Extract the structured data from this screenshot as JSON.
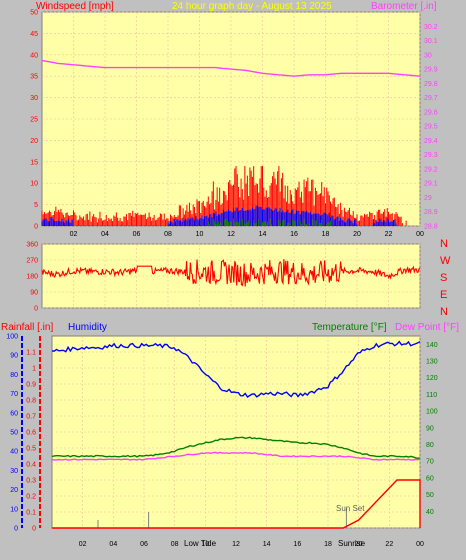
{
  "header": {
    "left_label": "Windspeed [mph]",
    "center_label": "24 hour graph day - August 13 2025",
    "right_label": "Barometer [.in]"
  },
  "lower_header": {
    "rain_label": "Rainfall [.in]",
    "humidity_label": "Humidity",
    "temp_label": "Temperature [°F]",
    "dew_label": "Dew Point [°F]"
  },
  "annotations": {
    "sun_set": "Sun Set",
    "sun_rise": "Sunrise",
    "low_tide": "Low Tide"
  },
  "colors": {
    "background": "#c0c0c0",
    "panel": "#ffffa8",
    "grid": "#f0c0a0",
    "wind": "#ff0000",
    "gust": "#0000ff",
    "avg": "#008000",
    "barometer": "#ff40ff",
    "humidity": "#0000ff",
    "temperature": "#008000",
    "dewpoint": "#ff40ff",
    "rain": "#ff0000",
    "title": "#ffff00"
  },
  "chart_data": [
    {
      "type": "area",
      "panel": "wind-barometer",
      "x_ticks": [
        "02",
        "04",
        "06",
        "08",
        "10",
        "12",
        "14",
        "16",
        "18",
        "20",
        "22",
        "00"
      ],
      "left_axis": {
        "label": "Windspeed [mph]",
        "ylim": [
          0,
          50
        ],
        "ticks": [
          0,
          5,
          10,
          15,
          20,
          25,
          30,
          35,
          40,
          45,
          50
        ]
      },
      "right_axis": {
        "label": "Barometer [.in]",
        "ylim": [
          28.8,
          30.3
        ],
        "ticks": [
          "28.8",
          "28.9",
          "29",
          "29.1",
          "29.2",
          "29.3",
          "29.4",
          "29.5",
          "29.6",
          "29.7",
          "29.8",
          "29.9",
          "30",
          "30.1",
          "30.2"
        ]
      },
      "series": [
        {
          "name": "Windspeed",
          "hours": [
            0,
            1,
            2,
            3,
            4,
            5,
            6,
            7,
            8,
            9,
            10,
            11,
            12,
            13,
            14,
            15,
            16,
            17,
            18,
            19,
            20,
            21,
            22,
            23,
            24
          ],
          "values": [
            2,
            2,
            1,
            1,
            1,
            1,
            1,
            1,
            1,
            2,
            3,
            5,
            7,
            8,
            8,
            7,
            6,
            6,
            5,
            2,
            1,
            1,
            2,
            0,
            0
          ]
        },
        {
          "name": "Barometer",
          "hours": [
            0,
            1,
            2,
            3,
            4,
            5,
            6,
            7,
            8,
            9,
            10,
            11,
            12,
            13,
            14,
            15,
            16,
            17,
            18,
            19,
            20,
            21,
            22,
            23,
            24
          ],
          "values": [
            29.96,
            29.94,
            29.93,
            29.92,
            29.91,
            29.91,
            29.91,
            29.91,
            29.91,
            29.91,
            29.91,
            29.91,
            29.9,
            29.89,
            29.87,
            29.86,
            29.85,
            29.86,
            29.86,
            29.87,
            29.87,
            29.87,
            29.87,
            29.86,
            29.85
          ]
        }
      ]
    },
    {
      "type": "line",
      "panel": "wind-direction",
      "ylim": [
        0,
        360
      ],
      "y_ticks": [
        "0",
        "90",
        "180",
        "270",
        "360"
      ],
      "compass": [
        "N",
        "W",
        "S",
        "E",
        "N"
      ],
      "series": [
        {
          "name": "Wind Direction",
          "hours": [
            0,
            1,
            2,
            3,
            4,
            5,
            6,
            7,
            8,
            9,
            10,
            11,
            12,
            13,
            14,
            15,
            16,
            17,
            18,
            19,
            20,
            21,
            22,
            23,
            24
          ],
          "values": [
            200,
            190,
            210,
            205,
            205,
            200,
            210,
            205,
            210,
            205,
            205,
            200,
            200,
            190,
            200,
            210,
            200,
            190,
            200,
            205,
            210,
            205,
            180,
            215,
            215
          ]
        }
      ]
    },
    {
      "type": "line",
      "panel": "temperature-humidity-rain",
      "x_ticks": [
        "02",
        "04",
        "06",
        "08",
        "10",
        "12",
        "14",
        "16",
        "18",
        "20",
        "22",
        "00"
      ],
      "rain_axis": {
        "label": "Rainfall [.in]",
        "ylim": [
          0,
          1.2
        ],
        "ticks": [
          "0",
          "0.1",
          "0.2",
          "0.3",
          "0.4",
          "0.5",
          "0.6",
          "0.7",
          "0.8",
          "0.9",
          "1",
          "1.1"
        ]
      },
      "humidity_axis": {
        "label": "Humidity",
        "ylim": [
          0,
          100
        ],
        "ticks": [
          "0",
          "10",
          "20",
          "30",
          "40",
          "50",
          "60",
          "70",
          "80",
          "90",
          "100"
        ]
      },
      "temp_axis": {
        "label": "Temperature [°F]",
        "ylim": [
          30,
          145
        ],
        "ticks": [
          "40",
          "50",
          "60",
          "70",
          "80",
          "90",
          "100",
          "110",
          "120",
          "130",
          "140"
        ]
      },
      "series": [
        {
          "name": "Humidity",
          "hours": [
            0,
            1,
            2,
            3,
            4,
            5,
            6,
            7,
            8,
            9,
            10,
            11,
            12,
            13,
            14,
            15,
            16,
            17,
            18,
            19,
            20,
            21,
            22,
            23,
            24
          ],
          "values": [
            92,
            93,
            94,
            94,
            95,
            95,
            95,
            95,
            94,
            88,
            80,
            73,
            70,
            69,
            70,
            70,
            69,
            71,
            74,
            82,
            91,
            95,
            96,
            96,
            96
          ]
        },
        {
          "name": "Temperature",
          "hours": [
            0,
            1,
            2,
            3,
            4,
            5,
            6,
            7,
            8,
            9,
            10,
            11,
            12,
            13,
            14,
            15,
            16,
            17,
            18,
            19,
            20,
            21,
            22,
            23,
            24
          ],
          "values": [
            73,
            73,
            73,
            73,
            73,
            73,
            73,
            74,
            76,
            79,
            81,
            83,
            84,
            84,
            83,
            82,
            81,
            81,
            80,
            78,
            75,
            73,
            73,
            73,
            72
          ]
        },
        {
          "name": "Dew Point",
          "hours": [
            0,
            1,
            2,
            3,
            4,
            5,
            6,
            7,
            8,
            9,
            10,
            11,
            12,
            13,
            14,
            15,
            16,
            17,
            18,
            19,
            20,
            21,
            22,
            23,
            24
          ],
          "values": [
            71,
            71,
            71,
            71,
            71,
            71,
            71,
            72,
            73,
            74,
            75,
            75,
            75,
            75,
            74,
            73,
            73,
            73,
            73,
            73,
            72,
            71,
            71,
            71,
            71
          ]
        },
        {
          "name": "Rainfall",
          "hours": [
            0,
            19,
            20,
            21,
            22,
            22.5,
            23,
            24
          ],
          "values": [
            0,
            0,
            0.05,
            0.15,
            0.25,
            0.3,
            0.3,
            0.3
          ]
        }
      ]
    }
  ]
}
